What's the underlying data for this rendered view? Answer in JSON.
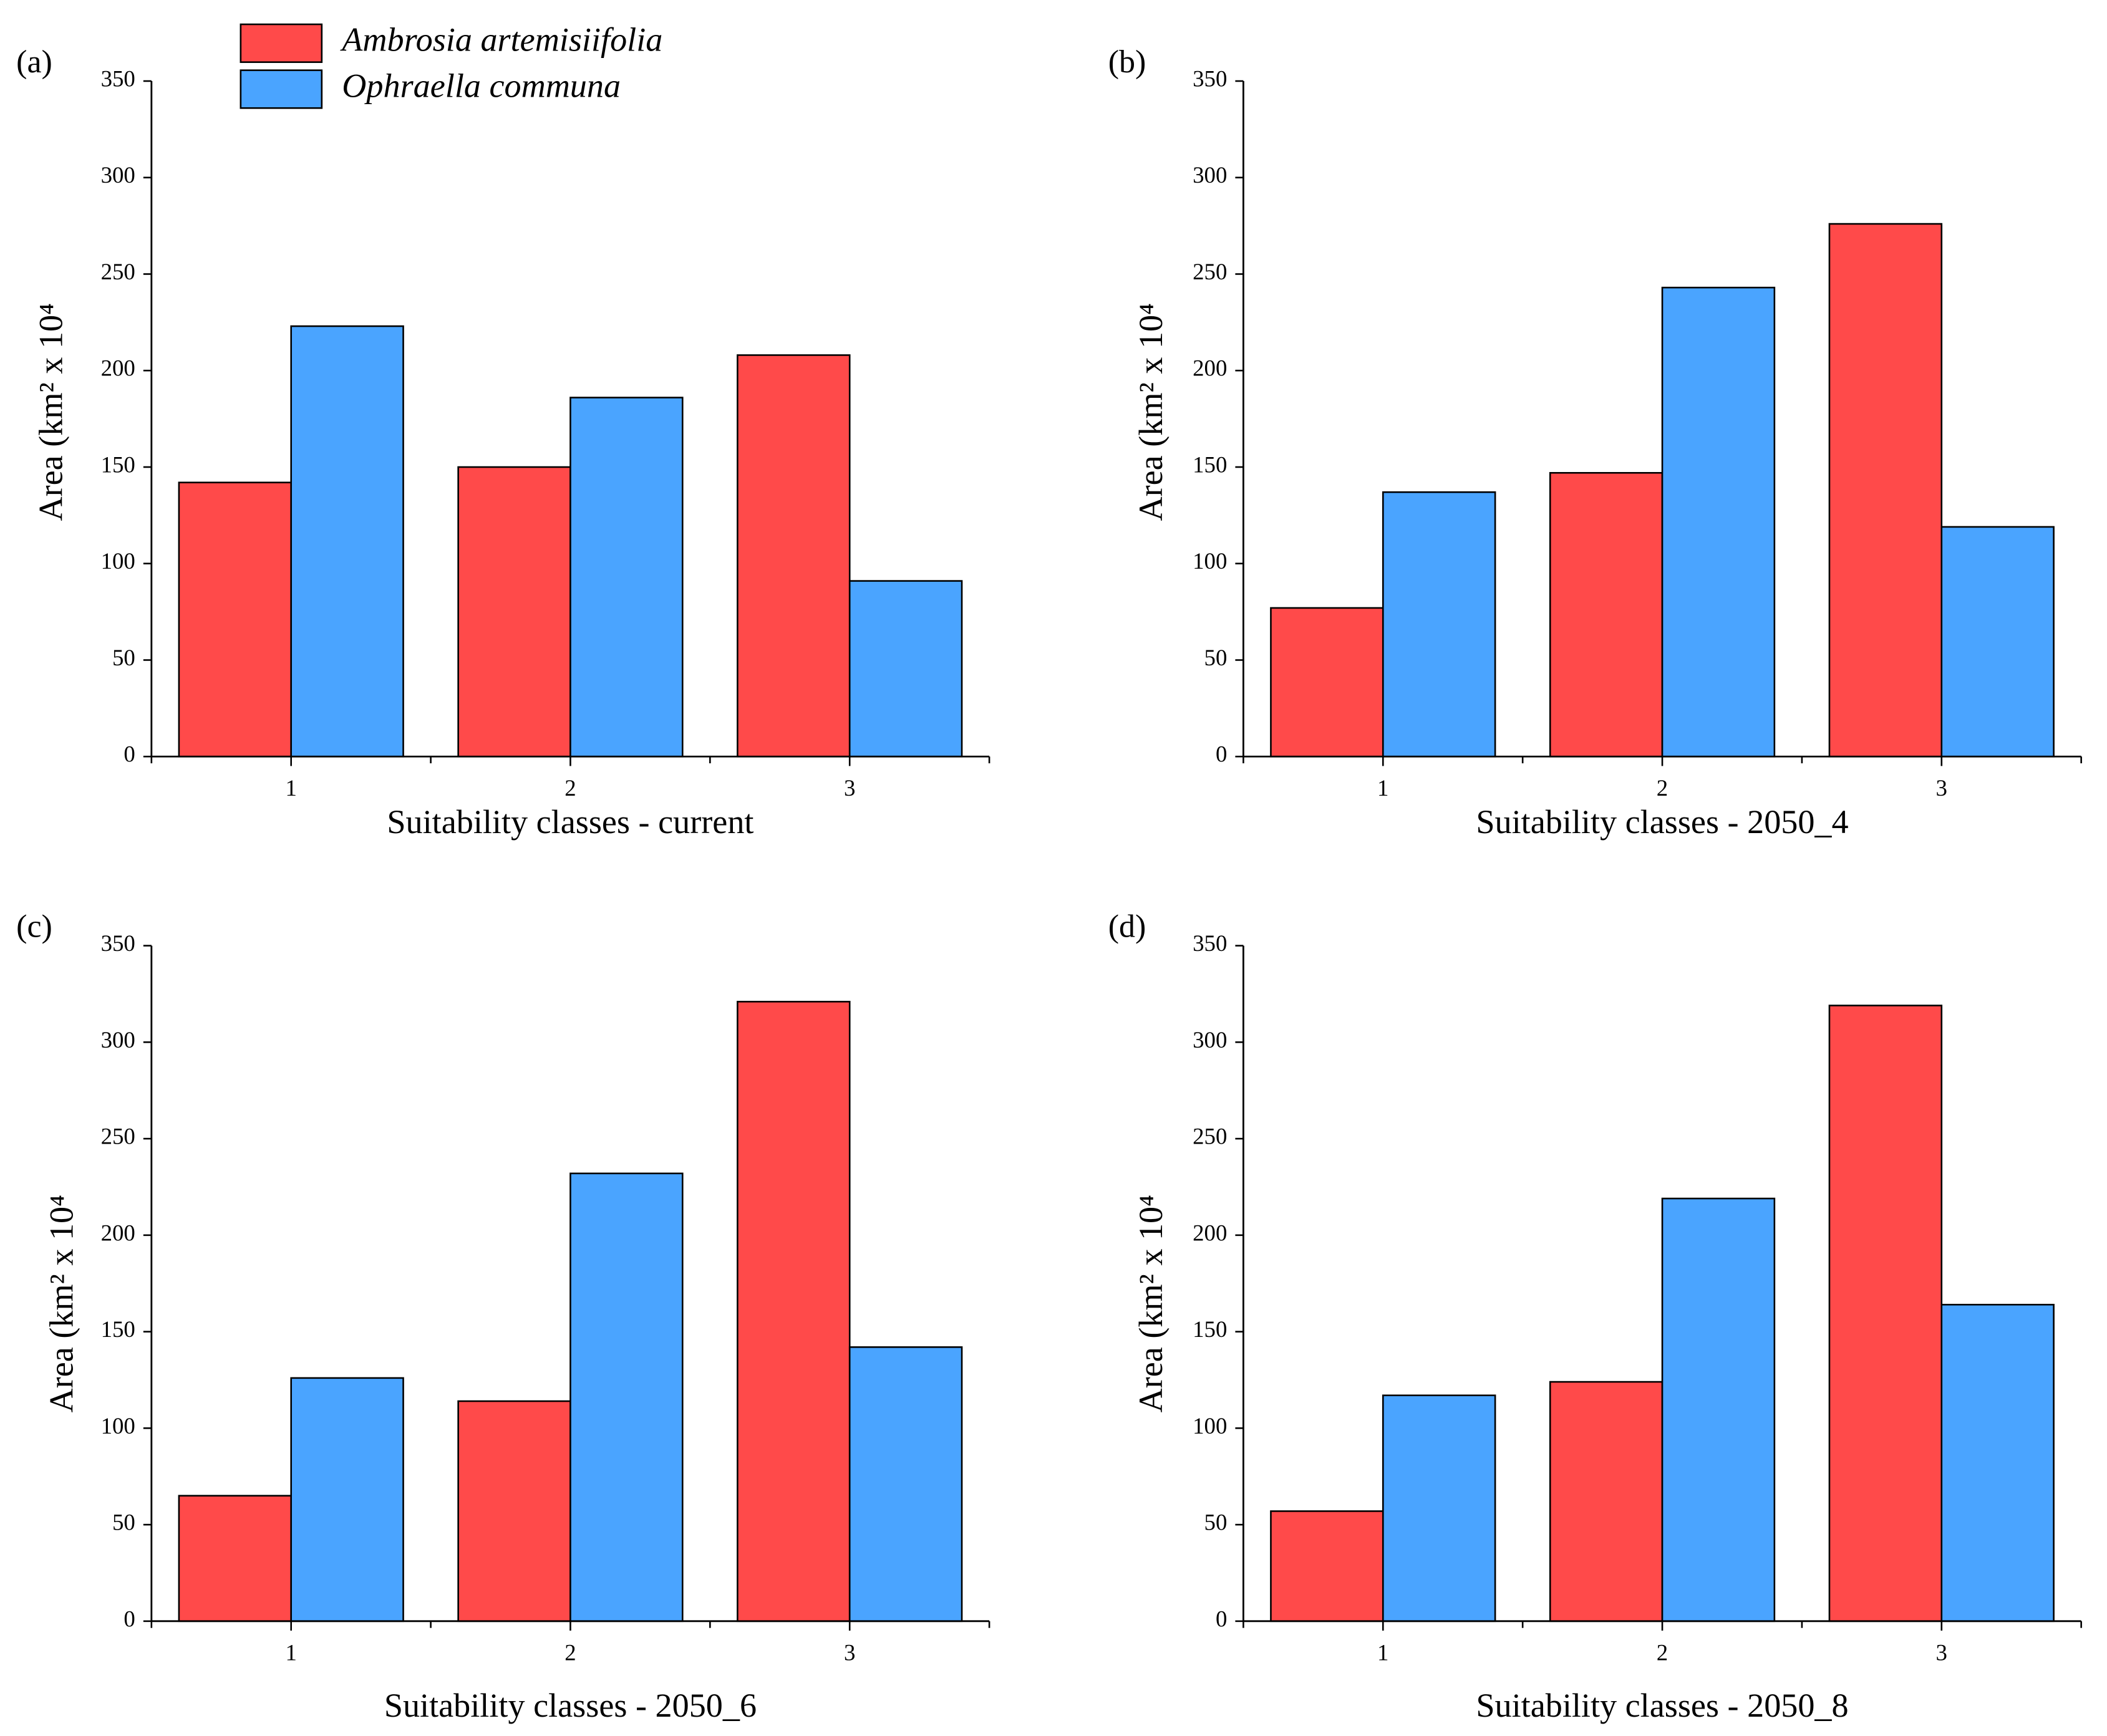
{
  "chart_data": [
    {
      "type": "bar",
      "panel": "(a)",
      "x_label": "Suitability classes - current",
      "y_label": "Area (km² x 10⁴",
      "categories": [
        "1",
        "2",
        "3"
      ],
      "series": [
        {
          "name": "Ambrosia artemisiifolia",
          "color": "#ff4a4a",
          "values": [
            142,
            150,
            208
          ]
        },
        {
          "name": "Ophraella communa",
          "color": "#4aa4ff",
          "values": [
            223,
            186,
            91
          ]
        }
      ],
      "ylim": [
        0,
        350
      ],
      "yticks": [
        0,
        50,
        100,
        150,
        200,
        250,
        300,
        350
      ]
    },
    {
      "type": "bar",
      "panel": "(b)",
      "x_label": "Suitability classes - 2050_4",
      "y_label": "Area (km² x 10⁴",
      "categories": [
        "1",
        "2",
        "3"
      ],
      "series": [
        {
          "color": "#ff4a4a",
          "values": [
            77,
            147,
            276
          ]
        },
        {
          "color": "#4aa4ff",
          "values": [
            137,
            243,
            119
          ]
        }
      ],
      "ylim": [
        0,
        350
      ],
      "yticks": [
        0,
        50,
        100,
        150,
        200,
        250,
        300,
        350
      ]
    },
    {
      "type": "bar",
      "panel": "(c)",
      "x_label": "Suitability classes - 2050_6",
      "y_label": "Area (km² x 10⁴",
      "categories": [
        "1",
        "2",
        "3"
      ],
      "series": [
        {
          "color": "#ff4a4a",
          "values": [
            65,
            114,
            321
          ]
        },
        {
          "color": "#4aa4ff",
          "values": [
            126,
            232,
            142
          ]
        }
      ],
      "ylim": [
        0,
        350
      ],
      "yticks": [
        0,
        50,
        100,
        150,
        200,
        250,
        300,
        350
      ]
    },
    {
      "type": "bar",
      "panel": "(d)",
      "x_label": "Suitability classes - 2050_8",
      "y_label": "Area (km² x 10⁴",
      "categories": [
        "1",
        "2",
        "3"
      ],
      "series": [
        {
          "color": "#ff4a4a",
          "values": [
            57,
            124,
            319
          ]
        },
        {
          "color": "#4aa4ff",
          "values": [
            117,
            219,
            164
          ]
        }
      ],
      "ylim": [
        0,
        350
      ],
      "yticks": [
        0,
        50,
        100,
        150,
        200,
        250,
        300,
        350
      ]
    }
  ]
}
